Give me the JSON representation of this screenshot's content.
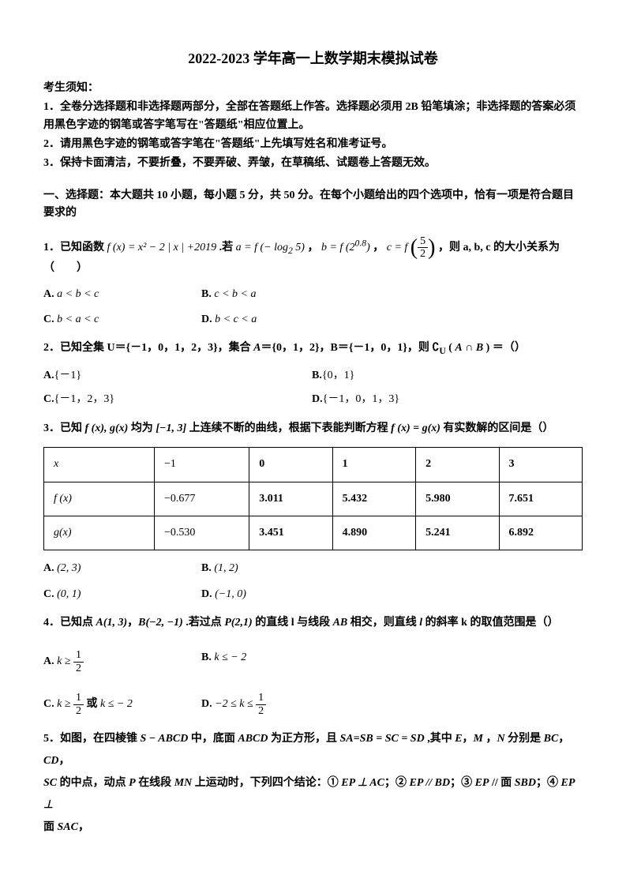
{
  "title": "2022-2023 学年高一上数学期末模拟试卷",
  "notice_heading": "考生须知：",
  "instructions": [
    "1．全卷分选择题和非选择题两部分，全部在答题纸上作答。选择题必须用 2B 铅笔填涂；非选择题的答案必须用黑色字迹的钢笔或答字笔写在\"答题纸\"相应位置上。",
    "2．请用黑色字迹的钢笔或答字笔在\"答题纸\"上先填写姓名和准考证号。",
    "3．保持卡面清洁，不要折叠，不要弄破、弄皱，在草稿纸、试题卷上答题无效。"
  ],
  "section1_intro": "一、选择题：本大题共 10 小题，每小题 5 分，共 50 分。在每个小题给出的四个选项中，恰有一项是符合题目要求的",
  "q1": {
    "prefix": "1．已知函数 ",
    "func": "f (x) = x² − 2 | x | +2019",
    "mid1": " .若 ",
    "a_expr": "a = f (− log₂ 5)",
    "sep1": "，",
    "b_expr": "b = f (2^{0.8})",
    "sep2": "，",
    "c_label": "c = f",
    "c_frac_num": "5",
    "c_frac_den": "2",
    "tail": "，则 a, b, c 的大小关系为（　　）",
    "optA": "a < b < c",
    "optB": "c < b < a",
    "optC": "b < a < c",
    "optD": "b < c < a"
  },
  "q2": {
    "text": "2．已知全集 U＝{－1，0，1，2，3}，集合 A＝{0，1，2}，B＝{－1，0，1}，则 ∁_U ( A ∩ B ) ＝（）",
    "optA": "{－1}",
    "optB": "{0，1}",
    "optC": "{－1，2，3}",
    "optD": "{－1，0，1，3}"
  },
  "q3": {
    "text": "3．已知 f (x), g(x) 均为 [−1, 3] 上连续不断的曲线，根据下表能判断方程 f (x) = g(x) 有实数解的区间是（）",
    "table": {
      "columns": [
        "x",
        "−1",
        "0",
        "1",
        "2",
        "3"
      ],
      "rows": [
        [
          "f (x)",
          "−0.677",
          "3.011",
          "5.432",
          "5.980",
          "7.651"
        ],
        [
          "g(x)",
          "−0.530",
          "3.451",
          "4.890",
          "5.241",
          "6.892"
        ]
      ]
    },
    "optA": "(2, 3)",
    "optB": "(1, 2)",
    "optC": "(0, 1)",
    "optD": "(−1, 0)"
  },
  "q4": {
    "text": "4．已知点 A(1, 3)，B(−2, −1) .若过点 P(2,1) 的直线 l 与线段 AB 相交，则直线 l 的斜率 k 的取值范围是（）",
    "optA_pre": "k ≥ ",
    "optA_num": "1",
    "optA_den": "2",
    "optB": "k ≤ − 2",
    "optC_pre": "k ≥ ",
    "optC_num": "1",
    "optC_den": "2",
    "optC_mid": " 或 k ≤ − 2",
    "optD_pre": "−2 ≤ k ≤ ",
    "optD_num": "1",
    "optD_den": "2"
  },
  "q5": {
    "line1": "5．如图，在四棱锥 S − ABCD 中，底面 ABCD 为正方形，且 SA=SB = SC = SD ,其中 E，M ，N 分别是 BC，CD，",
    "line2": "SC 的中点，动点 P 在线段 MN 上运动时，下列四个结论：① EP ⊥ AC；② EP // BD；③ EP // 面 SBD；④ EP ⊥",
    "line3": "面 SAC，"
  }
}
